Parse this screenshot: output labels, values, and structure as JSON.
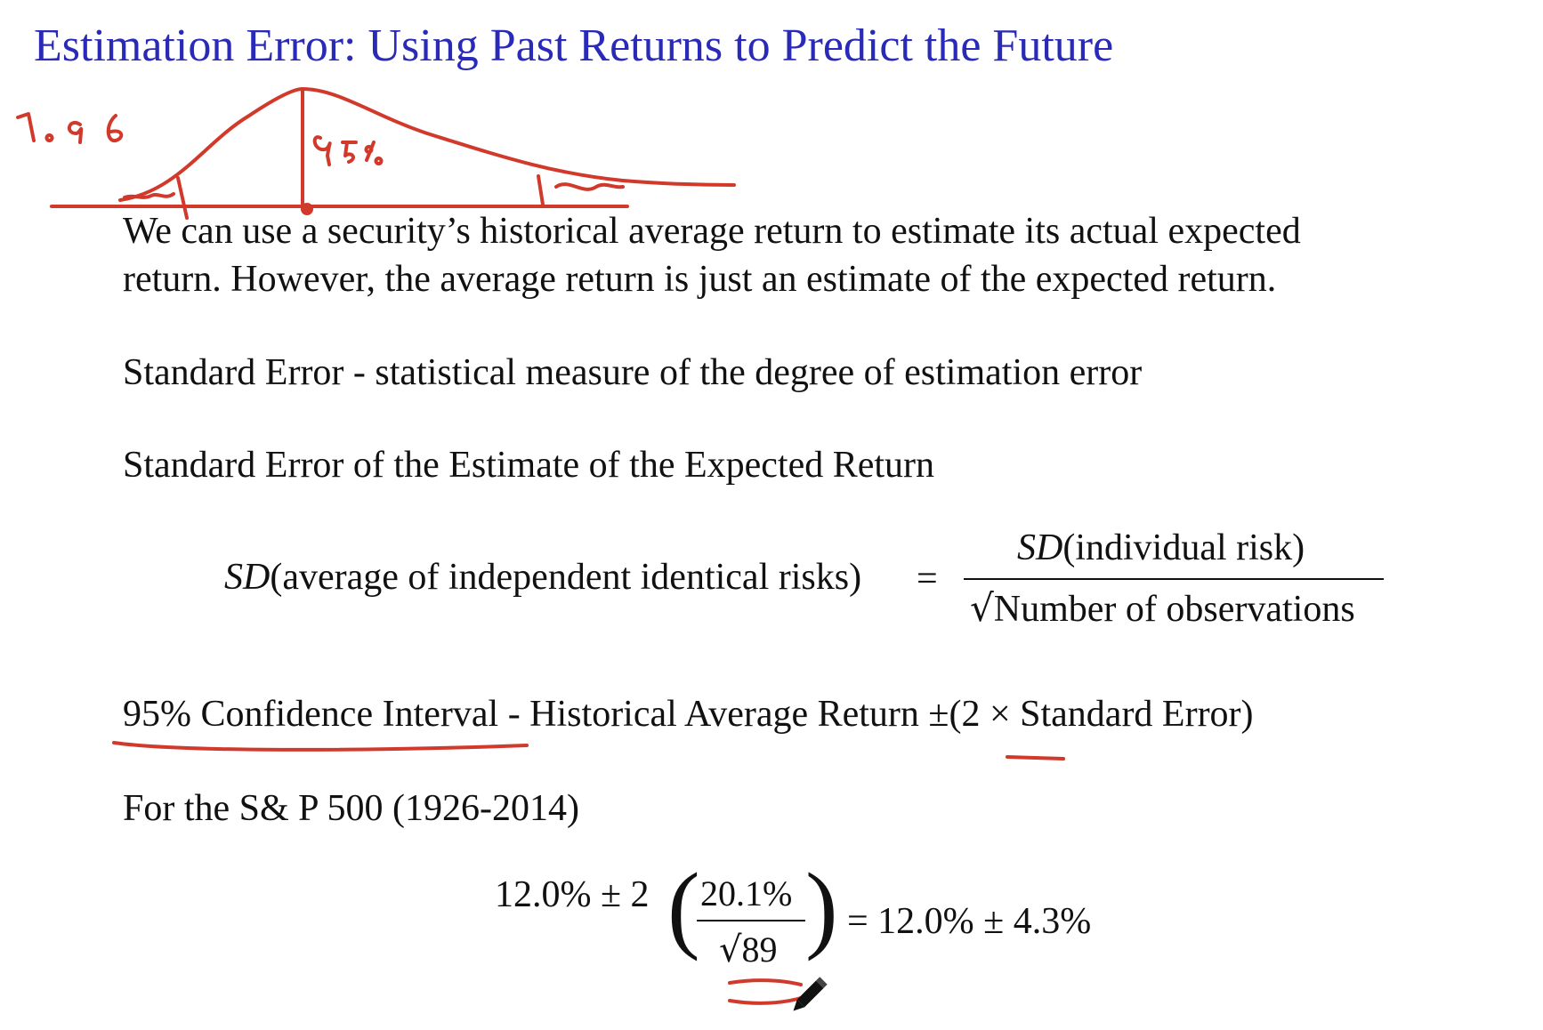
{
  "slide": {
    "title": "Estimation Error: Using Past Returns to Predict the Future",
    "para1": "We can use a security’s historical average return to estimate its actual expected",
    "para2": "return. However, the average return is just an estimate of the expected return.",
    "stderr_def": "Standard Error - statistical measure of the degree of estimation error",
    "stderr_est": "Standard Error of the Estimate of the Expected Return",
    "formula": {
      "lhs_func": "SD",
      "lhs_arg": "(average of independent identical risks)",
      "equals": "=",
      "num_func": "SD",
      "num_arg": "(individual risk)",
      "sqrt": "√",
      "den": "Number of observations"
    },
    "ci": {
      "label": "95% Confidence Interval",
      "rest": " - Historical Average Return ±(2 × Standard Error)"
    },
    "sp_label": "For the S& P 500 (1926-2014)",
    "calc": {
      "left": "12.0% ± 2",
      "num": "20.1%",
      "den": "89",
      "right": "= 12.0% ± 4.3%"
    }
  },
  "annotations": {
    "handwritten_number": "1.96",
    "handwritten_percent": "95%",
    "ink_color": "#d1392b"
  }
}
